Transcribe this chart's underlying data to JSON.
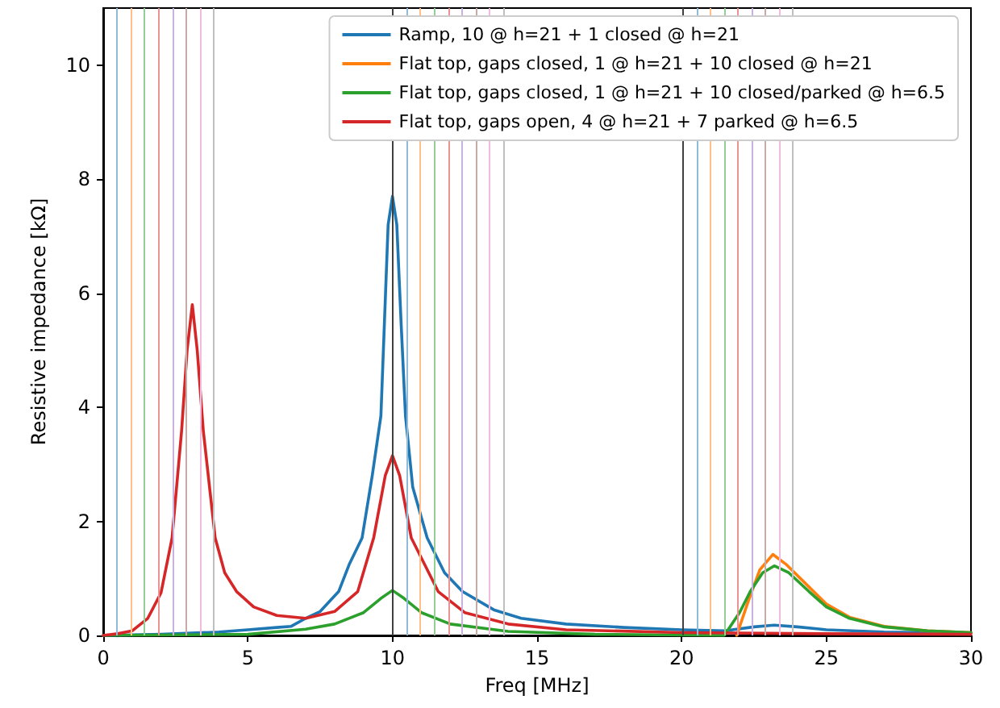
{
  "chart_data": {
    "type": "line",
    "xlabel": "Freq [MHz]",
    "ylabel": "Resistive impedance [kΩ]",
    "xlim": [
      0,
      30
    ],
    "xticks": [
      0,
      5,
      10,
      15,
      20,
      25,
      30
    ],
    "ylim": [
      0,
      11
    ],
    "yticks": [
      0,
      2,
      4,
      6,
      8,
      10
    ],
    "grid": false,
    "legend": "top right",
    "series": [
      {
        "name": "Ramp, 10 @ h=21 + 1 closed @ h=21",
        "color": "#1f77b4",
        "x": [
          0,
          2,
          4,
          5,
          6,
          6.5,
          7,
          7.5,
          8.14,
          8.5,
          8.95,
          9.3,
          9.6,
          9.72,
          9.85,
          10,
          10.15,
          10.3,
          10.45,
          10.7,
          11.2,
          11.8,
          12.42,
          13.5,
          14.45,
          16,
          18,
          20,
          21.5,
          22.5,
          23.2,
          24,
          25,
          27,
          30
        ],
        "values": [
          0,
          0.02,
          0.06,
          0.1,
          0.14,
          0.16,
          0.3,
          0.42,
          0.77,
          1.24,
          1.71,
          2.8,
          3.85,
          5.46,
          7.2,
          7.7,
          7.2,
          5.46,
          3.85,
          2.6,
          1.71,
          1.1,
          0.77,
          0.45,
          0.3,
          0.2,
          0.14,
          0.1,
          0.08,
          0.15,
          0.18,
          0.15,
          0.1,
          0.06,
          0.04
        ]
      },
      {
        "name": "Flat top, gaps closed, 1 @ h=21 + 10 closed @ h=21",
        "color": "#ff7f0e",
        "x": [
          21.9,
          22.3,
          22.7,
          23.15,
          23.6,
          24.4,
          25,
          25.8,
          27,
          28.5,
          30
        ],
        "values": [
          0,
          0.6,
          1.15,
          1.42,
          1.25,
          0.85,
          0.55,
          0.32,
          0.16,
          0.08,
          0.05
        ]
      },
      {
        "name": "Flat top, gaps closed, 1 @ h=21 + 10 closed/parked @ h=6.5",
        "color": "#2ca02c",
        "x": [
          0,
          5,
          7,
          8,
          9,
          9.6,
          10,
          10.4,
          11,
          12,
          14,
          17,
          21.47,
          22,
          22.37,
          22.8,
          23.2,
          23.7,
          24.4,
          25,
          25.8,
          27,
          28.5,
          30
        ],
        "values": [
          0,
          0.02,
          0.11,
          0.2,
          0.4,
          0.65,
          0.79,
          0.65,
          0.4,
          0.2,
          0.07,
          0.02,
          0,
          0.4,
          0.77,
          1.1,
          1.22,
          1.1,
          0.77,
          0.5,
          0.3,
          0.15,
          0.08,
          0.05
        ]
      },
      {
        "name": "Flat top, gaps open, 4 @ h=21 + 7 parked @ h=6.5",
        "color": "#d62728",
        "x": [
          0,
          0.5,
          1,
          1.54,
          2,
          2.38,
          2.71,
          2.9,
          3.08,
          3.25,
          3.46,
          3.87,
          4.2,
          4.61,
          5.2,
          6,
          7,
          8,
          8.8,
          9.35,
          9.75,
          10,
          10.25,
          10.65,
          11.58,
          12.5,
          14,
          16,
          20,
          25,
          30
        ],
        "values": [
          0,
          0.03,
          0.08,
          0.3,
          0.75,
          1.71,
          3.59,
          5.0,
          5.8,
          5.0,
          3.59,
          1.71,
          1.1,
          0.77,
          0.5,
          0.35,
          0.3,
          0.42,
          0.77,
          1.71,
          2.8,
          3.15,
          2.8,
          1.71,
          0.77,
          0.4,
          0.2,
          0.1,
          0.05,
          0.03,
          0.02
        ]
      }
    ],
    "ref_lines": [
      {
        "axis": "x",
        "value": 0.48,
        "color": "#8fbbd9"
      },
      {
        "axis": "x",
        "value": 0.95,
        "color": "#ffbf86"
      },
      {
        "axis": "x",
        "value": 1.43,
        "color": "#95cf95"
      },
      {
        "axis": "x",
        "value": 1.91,
        "color": "#eb9393"
      },
      {
        "axis": "x",
        "value": 2.39,
        "color": "#c9b3de"
      },
      {
        "axis": "x",
        "value": 2.86,
        "color": "#c6aaa5"
      },
      {
        "axis": "x",
        "value": 3.34,
        "color": "#f1bbe0"
      },
      {
        "axis": "x",
        "value": 3.82,
        "color": "#bfbfbf"
      },
      {
        "axis": "x",
        "value": 10.02,
        "color": "#404040"
      },
      {
        "axis": "x",
        "value": 10.5,
        "color": "#8fbbd9"
      },
      {
        "axis": "x",
        "value": 10.97,
        "color": "#ffbf86"
      },
      {
        "axis": "x",
        "value": 11.45,
        "color": "#95cf95"
      },
      {
        "axis": "x",
        "value": 11.93,
        "color": "#eb9393"
      },
      {
        "axis": "x",
        "value": 12.4,
        "color": "#c9b3de"
      },
      {
        "axis": "x",
        "value": 12.88,
        "color": "#c6aaa5"
      },
      {
        "axis": "x",
        "value": 13.36,
        "color": "#f1bbe0"
      },
      {
        "axis": "x",
        "value": 13.84,
        "color": "#bfbfbf"
      },
      {
        "axis": "x",
        "value": 20.03,
        "color": "#404040"
      },
      {
        "axis": "x",
        "value": 20.51,
        "color": "#8fbbd9"
      },
      {
        "axis": "x",
        "value": 20.99,
        "color": "#ffbf86"
      },
      {
        "axis": "x",
        "value": 21.47,
        "color": "#95cf95"
      },
      {
        "axis": "x",
        "value": 21.94,
        "color": "#eb9393"
      },
      {
        "axis": "x",
        "value": 22.42,
        "color": "#c9b3de"
      },
      {
        "axis": "x",
        "value": 22.9,
        "color": "#c6aaa5"
      },
      {
        "axis": "x",
        "value": 23.37,
        "color": "#f1bbe0"
      },
      {
        "axis": "x",
        "value": 23.85,
        "color": "#bfbfbf"
      }
    ]
  }
}
